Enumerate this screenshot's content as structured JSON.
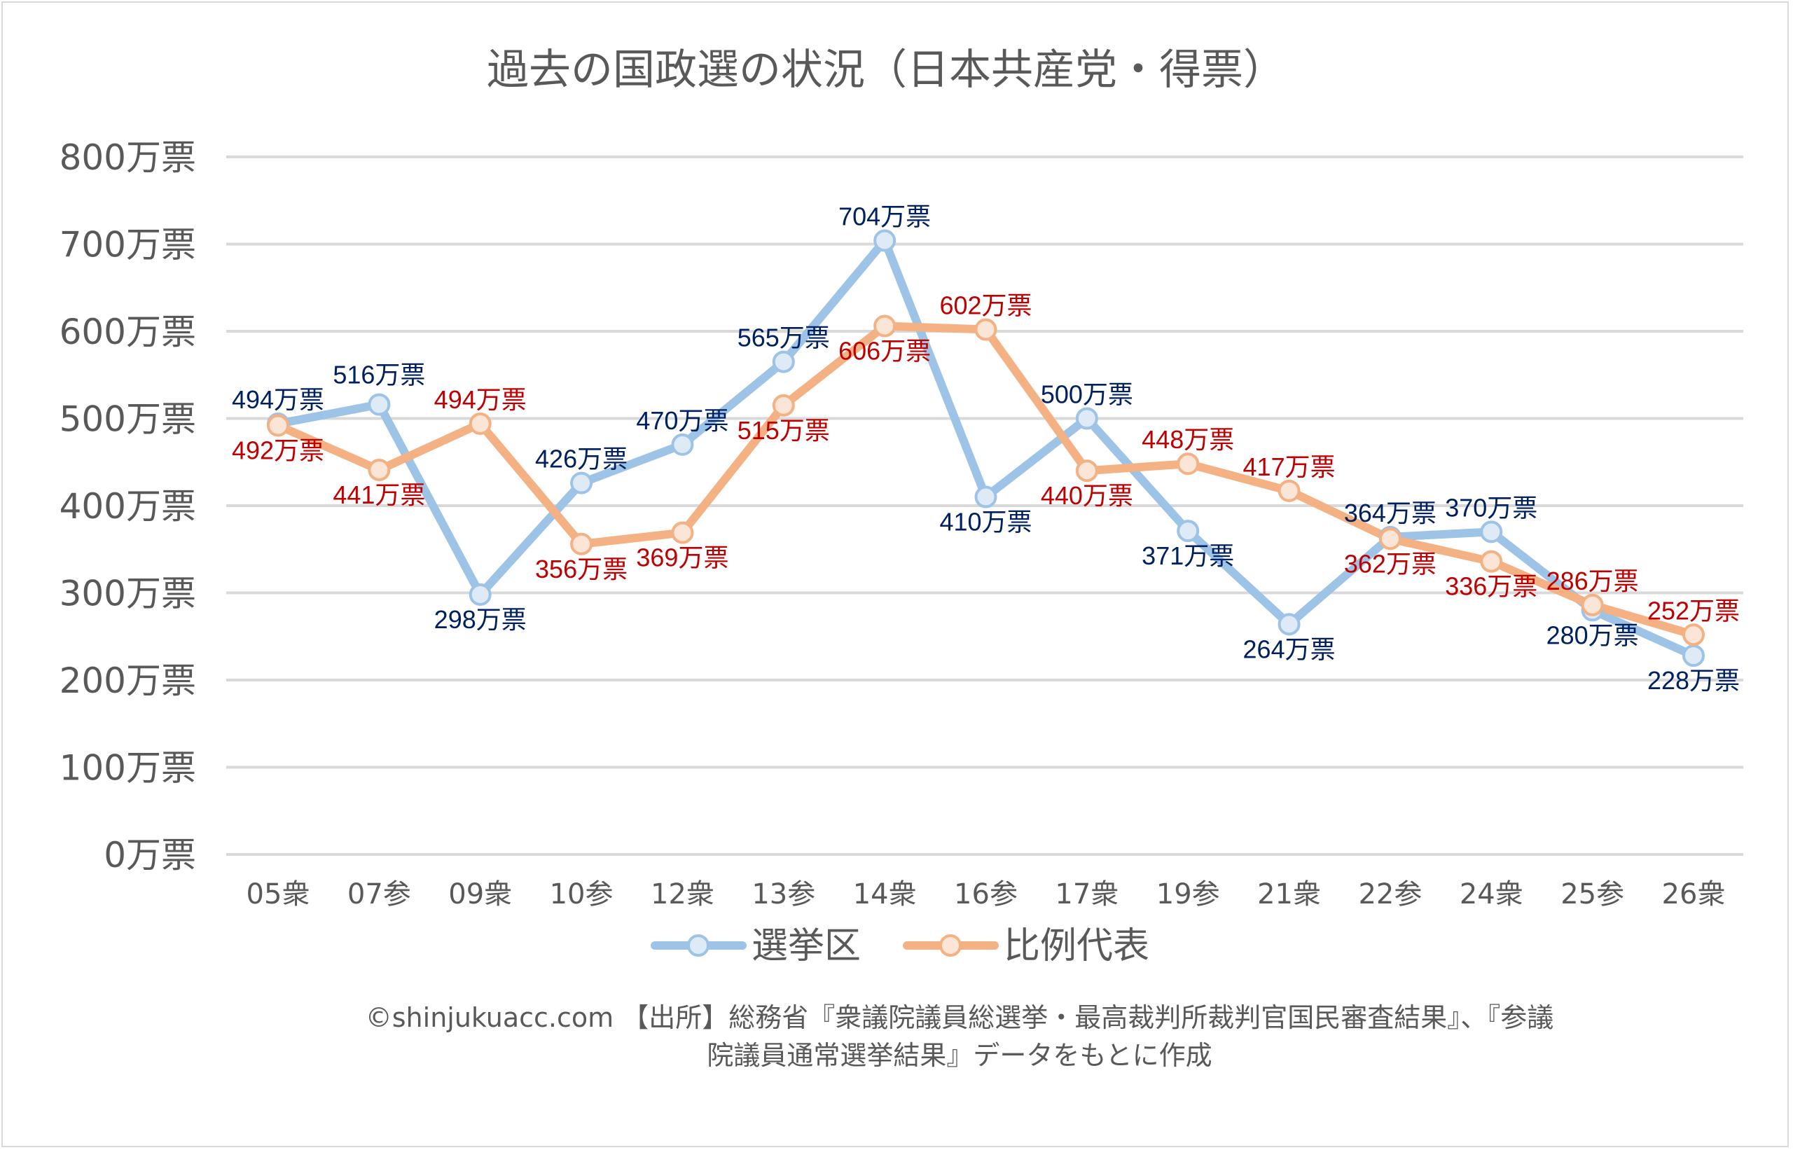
{
  "chart_data": {
    "type": "line",
    "title": "過去の国政選の状況（日本共産党・得票）",
    "categories": [
      "05衆",
      "07参",
      "09衆",
      "10参",
      "12衆",
      "13参",
      "14衆",
      "16参",
      "17衆",
      "19参",
      "21衆",
      "22参",
      "24衆",
      "25参",
      "26衆"
    ],
    "series": [
      {
        "name": "選挙区",
        "color": "#9dc3e6",
        "label_color": "#002060",
        "values": [
          494,
          516,
          298,
          426,
          470,
          565,
          704,
          410,
          500,
          371,
          264,
          364,
          370,
          280,
          228
        ]
      },
      {
        "name": "比例代表",
        "color": "#f4b183",
        "label_color": "#c00000",
        "values": [
          492,
          441,
          494,
          356,
          369,
          515,
          606,
          602,
          440,
          448,
          417,
          362,
          336,
          286,
          252
        ]
      }
    ],
    "unit_suffix": "万票",
    "yticks": [
      "0万票",
      "100万票",
      "200万票",
      "300万票",
      "400万票",
      "500万票",
      "600万票",
      "700万票",
      "800万票"
    ],
    "ylim": [
      0,
      800
    ],
    "grid": true,
    "legend": "bottom",
    "footer_lines": [
      "©shinjukuacc.com 【出所】総務省『衆議院議員総選挙・最高裁判所裁判官国民審査結果』、『参議",
      "院議員通常選挙結果』データをもとに作成"
    ]
  }
}
